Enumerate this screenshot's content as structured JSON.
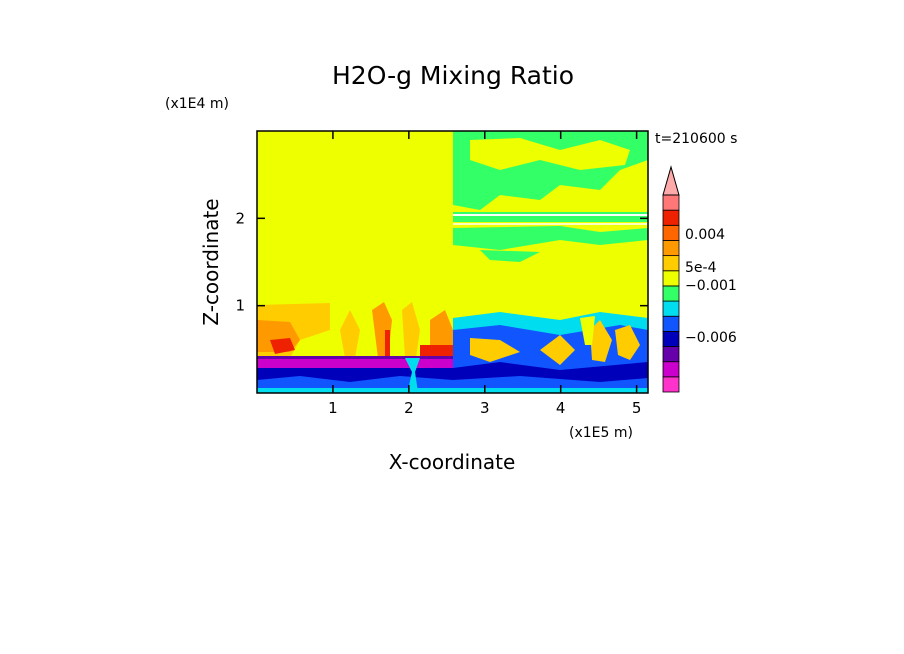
{
  "chart_data": {
    "type": "heatmap",
    "title": "H2O-g Mixing Ratio",
    "xlabel": "X-coordinate",
    "ylabel": "Z-coordinate",
    "x_unit": "(x1E5 m)",
    "y_unit": "(x1E4 m)",
    "time_label": "t=210600 s",
    "xlim": [
      0,
      5.15
    ],
    "ylim": [
      0,
      3.0
    ],
    "x_ticks": [
      1,
      2,
      3,
      4,
      5
    ],
    "y_ticks": [
      1,
      2
    ],
    "x_tick_labels": [
      "1",
      "2",
      "3",
      "4",
      "5"
    ],
    "y_tick_labels": [
      "1",
      "2"
    ],
    "colorbar": {
      "extend": "max",
      "labels": [
        {
          "text": "0.004",
          "value": 0.004
        },
        {
          "text": "5e-4",
          "value": 0.0005
        },
        {
          "text": "−0.001",
          "value": -0.001
        },
        {
          "text": "−0.006",
          "value": -0.006
        }
      ],
      "colors": [
        "#ff33cc",
        "#cc00cc",
        "#6600aa",
        "#0000bb",
        "#1155ff",
        "#00ddee",
        "#33ff66",
        "#eeff00",
        "#ffcc00",
        "#ff9900",
        "#ff6600",
        "#ee2200",
        "#ff7777",
        "#ffaaaa"
      ],
      "arrow_color": "#ffaaaa"
    },
    "regions": [
      {
        "x": [
          0,
          2.56
        ],
        "z": [
          0,
          3.0
        ],
        "color": "#eeff00"
      },
      {
        "x": [
          2.56,
          5.15
        ],
        "z": [
          0,
          3.0
        ],
        "color": "#eeff00"
      },
      {
        "x": [
          2.56,
          5.15
        ],
        "z": [
          2.1,
          3.0
        ],
        "color": "#33ff66"
      },
      {
        "x": [
          0,
          2.56
        ],
        "z": [
          0.6,
          1.0
        ],
        "color": "#ffcc00"
      },
      {
        "x": [
          0,
          2.56
        ],
        "z": [
          0.3,
          0.5
        ],
        "color": "#6600aa"
      },
      {
        "x": [
          0,
          5.15
        ],
        "z": [
          0,
          0.35
        ],
        "color": "#0000bb"
      },
      {
        "x": [
          2.56,
          5.15
        ],
        "z": [
          0.35,
          0.95
        ],
        "color": "#00ddee"
      }
    ]
  }
}
